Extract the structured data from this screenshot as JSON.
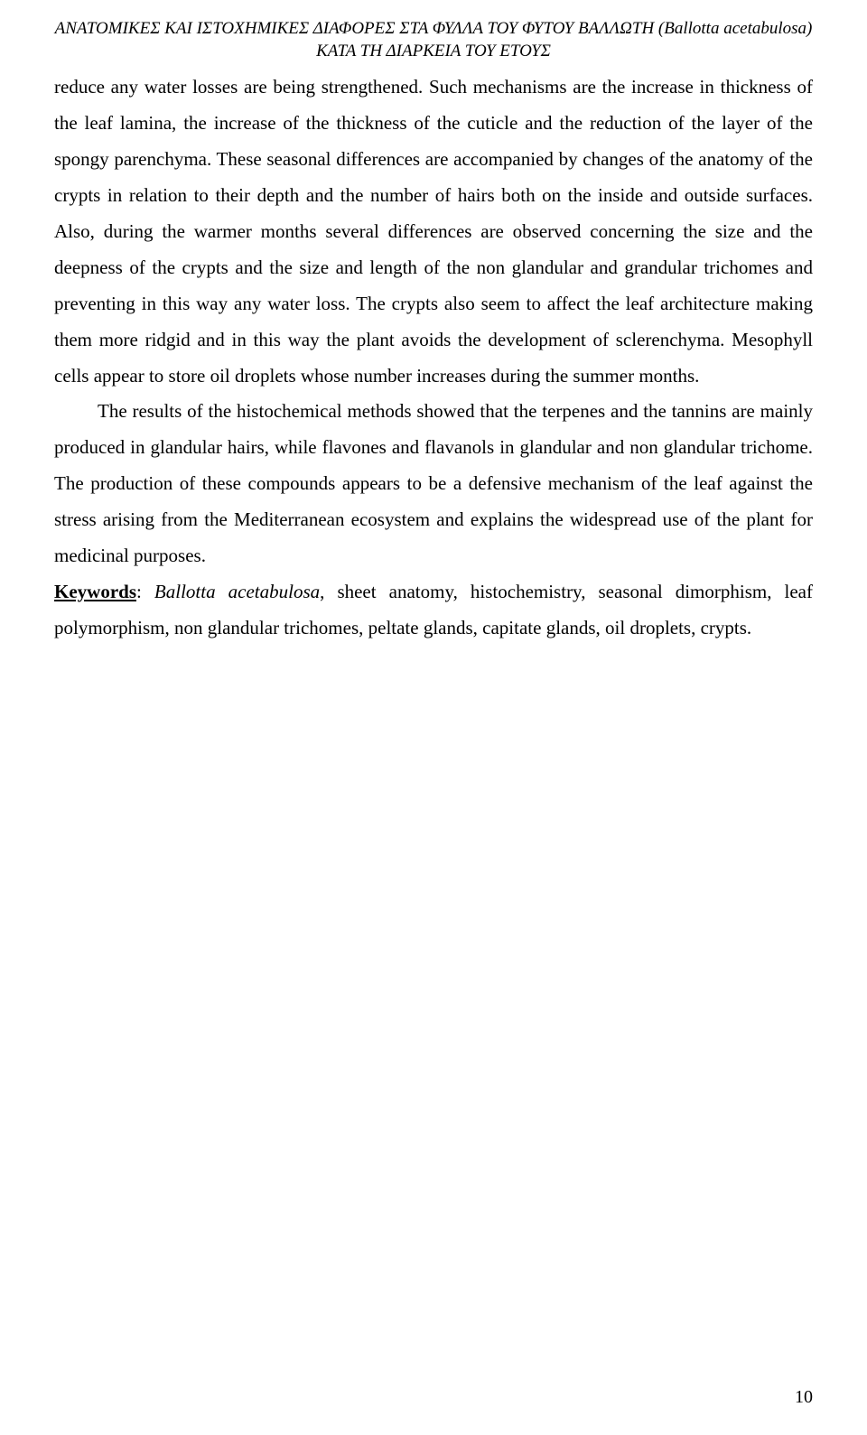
{
  "header": {
    "line1": "ΑΝΑΤΟΜΙΚΕΣ ΚΑΙ ΙΣΤΟΧΗΜΙΚΕΣ ΔΙΑΦΟΡΕΣ ΣΤΑ ΦΥΛΛΑ ΤΟΥ ΦΥΤΟΥ ΒΑΛΛΩΤΗ (Ballotta acetabulosa) ΚΑΤΑ ΤΗ ΔΙΑΡΚΕΙΑ ΤΟΥ ΕΤΟΥΣ"
  },
  "paragraphs": {
    "p1": "reduce any water losses are being strengthened. Such mechanisms are the increase in thickness of the leaf lamina, the increase of the thickness of the cuticle and the reduction of the layer of the spongy parenchyma. These seasonal differences are accompanied by changes of the anatomy of the crypts in relation to their depth and the number of hairs both on the inside and outside surfaces. Also, during the warmer months several differences are observed concerning the size and the deepness of the crypts and the size and length of the non glandular and grandular trichomes and preventing in this way any water loss. The crypts also seem to affect the leaf architecture making them more ridgid and in this way the plant avoids the development of sclerenchyma. Mesophyll cells appear to store oil droplets whose number increases during the summer months.",
    "p2": "The results of the histochemical methods showed that the terpenes and the tannins are mainly produced in glandular hairs, while flavones and flavanols in glandular and non glandular trichome. The production of these compounds appears to be a defensive mechanism of the leaf against the stress arising from the Mediterranean ecosystem and explains the widespread use of the plant for medicinal purposes."
  },
  "keywords": {
    "label": "Keywords",
    "separator": ": ",
    "species": "Ballotta acetabulosa",
    "rest": ", sheet anatomy, histochemistry, seasonal dimorphism, leaf polymorphism, non glandular trichomes, peltate glands, capitate glands, oil droplets, crypts."
  },
  "pageNumber": "10"
}
